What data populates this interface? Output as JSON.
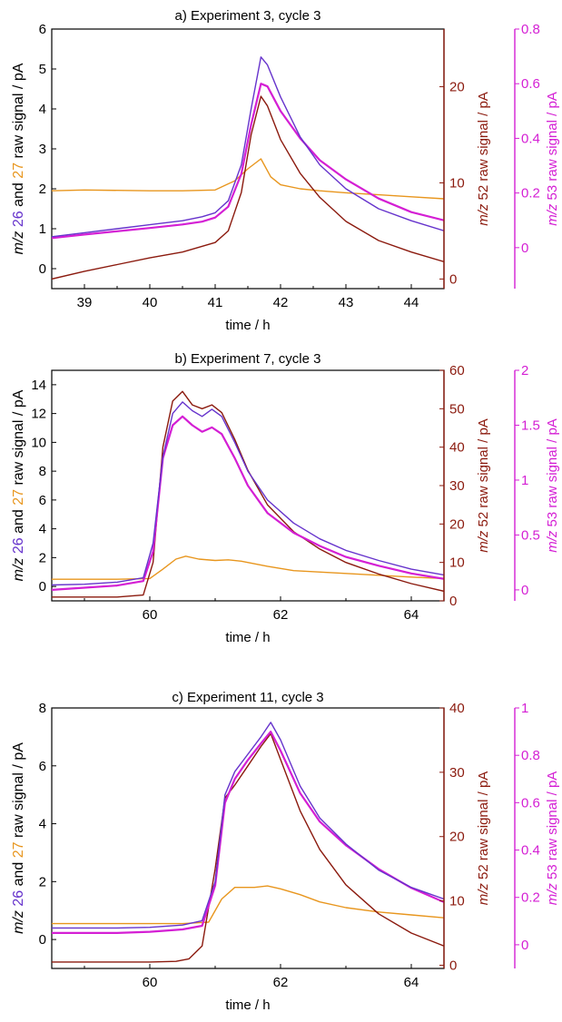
{
  "figure": {
    "xlabel": "time / h",
    "left_ylabel": {
      "prefix": "m/z",
      "a": "26",
      "mid": "and",
      "b": "27",
      "suffix": "raw signal / pA"
    },
    "right1_ylabel": "m/z 52 raw signal / pA",
    "right2_ylabel": "m/z 53 raw signal / pA"
  },
  "colors": {
    "mz26": "#6633cc",
    "mz27": "#e8961e",
    "mz52": "#8b1a0e",
    "mz53": "#d41fd4",
    "axis": "#000000"
  },
  "chart_data": [
    {
      "type": "line",
      "title": "a) Experiment 3, cycle 3",
      "xlabel": "time / h",
      "xlim": [
        38.5,
        44.5
      ],
      "xticks": [
        "39",
        "40",
        "41",
        "42",
        "43",
        "44"
      ],
      "ylim_left": [
        -0.5,
        6
      ],
      "yticks_left": [
        "0",
        "1",
        "2",
        "3",
        "4",
        "5",
        "6"
      ],
      "ylim_52": [
        -1,
        26
      ],
      "yticks_52": [
        "0",
        "10",
        "20"
      ],
      "ylim_53": [
        -0.15,
        0.8
      ],
      "yticks_53": [
        "0",
        "0.2",
        "0.4",
        "0.6",
        "0.8"
      ],
      "series": [
        {
          "name": "m/z 26",
          "axis": "left",
          "x": [
            38.5,
            39,
            39.5,
            40,
            40.5,
            40.8,
            41,
            41.2,
            41.4,
            41.55,
            41.7,
            41.8,
            42,
            42.3,
            42.6,
            43,
            43.5,
            44,
            44.5
          ],
          "y": [
            0.8,
            0.9,
            1.0,
            1.1,
            1.2,
            1.3,
            1.4,
            1.7,
            2.6,
            4.0,
            5.3,
            5.1,
            4.3,
            3.3,
            2.6,
            2.0,
            1.5,
            1.2,
            0.95
          ]
        },
        {
          "name": "m/z 27",
          "axis": "left",
          "x": [
            38.5,
            39,
            40,
            40.5,
            41,
            41.3,
            41.5,
            41.7,
            41.85,
            42,
            42.3,
            42.6,
            43,
            43.5,
            44,
            44.5
          ],
          "y": [
            1.95,
            1.97,
            1.95,
            1.95,
            1.97,
            2.2,
            2.5,
            2.75,
            2.3,
            2.1,
            2.0,
            1.95,
            1.9,
            1.85,
            1.8,
            1.75
          ]
        },
        {
          "name": "m/z 52",
          "axis": "right52",
          "x": [
            38.5,
            39,
            39.5,
            40,
            40.5,
            41,
            41.2,
            41.4,
            41.55,
            41.7,
            41.8,
            42,
            42.3,
            42.6,
            43,
            43.5,
            44,
            44.5
          ],
          "y": [
            0.0,
            0.8,
            1.5,
            2.2,
            2.8,
            3.8,
            5.0,
            9.0,
            15.0,
            19.0,
            18.0,
            14.5,
            11.0,
            8.5,
            6.0,
            4.0,
            2.8,
            1.8
          ]
        },
        {
          "name": "m/z 53",
          "axis": "right53",
          "x": [
            38.5,
            39,
            39.5,
            40,
            40.5,
            40.8,
            41,
            41.2,
            41.4,
            41.55,
            41.7,
            41.8,
            42,
            42.3,
            42.6,
            43,
            43.5,
            44,
            44.5
          ],
          "y": [
            0.035,
            0.048,
            0.06,
            0.072,
            0.085,
            0.095,
            0.11,
            0.15,
            0.27,
            0.45,
            0.6,
            0.59,
            0.5,
            0.4,
            0.32,
            0.25,
            0.18,
            0.13,
            0.1
          ]
        }
      ]
    },
    {
      "type": "line",
      "title": "b) Experiment 7, cycle 3",
      "xlabel": "time / h",
      "xlim": [
        58.5,
        64.5
      ],
      "xticks": [
        "60",
        "62",
        "64"
      ],
      "ylim_left": [
        -1,
        15
      ],
      "yticks_left": [
        "0",
        "2",
        "4",
        "6",
        "8",
        "10",
        "12",
        "14"
      ],
      "ylim_52": [
        0,
        60
      ],
      "yticks_52": [
        "0",
        "10",
        "20",
        "30",
        "40",
        "50",
        "60"
      ],
      "ylim_53": [
        -0.1,
        2
      ],
      "yticks_53": [
        "0",
        "0.5",
        "1",
        "1.5",
        "2"
      ],
      "series": [
        {
          "name": "m/z 26",
          "axis": "left",
          "x": [
            58.5,
            59,
            59.5,
            59.9,
            60.05,
            60.2,
            60.35,
            60.5,
            60.65,
            60.8,
            60.95,
            61.1,
            61.3,
            61.5,
            61.8,
            62.2,
            62.6,
            63,
            63.5,
            64,
            64.5
          ],
          "y": [
            0.1,
            0.15,
            0.3,
            0.6,
            3.0,
            9.0,
            12.0,
            12.8,
            12.2,
            11.8,
            12.3,
            11.8,
            10.0,
            8.0,
            6.0,
            4.4,
            3.3,
            2.5,
            1.8,
            1.2,
            0.8
          ]
        },
        {
          "name": "m/z 27",
          "axis": "left",
          "x": [
            58.5,
            59,
            59.5,
            60,
            60.2,
            60.4,
            60.55,
            60.75,
            61,
            61.2,
            61.4,
            61.8,
            62.2,
            63,
            64,
            64.5
          ],
          "y": [
            0.5,
            0.5,
            0.5,
            0.55,
            1.2,
            1.9,
            2.1,
            1.9,
            1.8,
            1.85,
            1.75,
            1.4,
            1.1,
            0.9,
            0.65,
            0.55
          ]
        },
        {
          "name": "m/z 52",
          "axis": "right52",
          "x": [
            58.5,
            59,
            59.5,
            59.9,
            60.05,
            60.2,
            60.35,
            60.5,
            60.65,
            60.8,
            60.95,
            61.1,
            61.3,
            61.5,
            61.8,
            62.2,
            62.6,
            63,
            63.5,
            64,
            64.5
          ],
          "y": [
            1.0,
            1.0,
            1.0,
            1.5,
            10.0,
            40.0,
            52.0,
            54.5,
            51.0,
            50.0,
            51.0,
            49.0,
            42.0,
            34.0,
            25.0,
            18.0,
            13.5,
            10.0,
            7.0,
            4.5,
            2.5
          ]
        },
        {
          "name": "m/z 53",
          "axis": "right53",
          "x": [
            58.5,
            59,
            59.5,
            59.9,
            60.05,
            60.2,
            60.35,
            60.5,
            60.65,
            60.8,
            60.95,
            61.1,
            61.3,
            61.5,
            61.8,
            62.2,
            62.6,
            63,
            63.5,
            64,
            64.5
          ],
          "y": [
            0.0,
            0.02,
            0.04,
            0.08,
            0.35,
            1.2,
            1.5,
            1.58,
            1.5,
            1.44,
            1.48,
            1.42,
            1.2,
            0.95,
            0.7,
            0.52,
            0.4,
            0.3,
            0.22,
            0.15,
            0.1
          ]
        }
      ]
    },
    {
      "type": "line",
      "title": "c) Experiment 11, cycle 3",
      "xlabel": "time / h",
      "xlim": [
        58.5,
        64.5
      ],
      "xticks": [
        "60",
        "62",
        "64"
      ],
      "ylim_left": [
        -1,
        8
      ],
      "yticks_left": [
        "0",
        "2",
        "4",
        "6",
        "8"
      ],
      "ylim_52": [
        -0.5,
        40
      ],
      "yticks_52": [
        "0",
        "10",
        "20",
        "30",
        "40"
      ],
      "ylim_53": [
        -0.1,
        1
      ],
      "yticks_53": [
        "0",
        "0.2",
        "0.4",
        "0.6",
        "0.8",
        "1"
      ],
      "series": [
        {
          "name": "m/z 26",
          "axis": "left",
          "x": [
            58.5,
            59,
            59.5,
            60,
            60.5,
            60.8,
            61.0,
            61.15,
            61.3,
            61.5,
            61.7,
            61.85,
            62.0,
            62.3,
            62.6,
            63,
            63.5,
            64,
            64.5
          ],
          "y": [
            0.4,
            0.4,
            0.4,
            0.42,
            0.5,
            0.65,
            2.0,
            5.0,
            5.8,
            6.4,
            7.0,
            7.5,
            6.9,
            5.3,
            4.2,
            3.3,
            2.4,
            1.8,
            1.4
          ]
        },
        {
          "name": "m/z 27",
          "axis": "left",
          "x": [
            58.5,
            59,
            60,
            60.5,
            60.9,
            61.1,
            61.3,
            61.6,
            61.8,
            62.0,
            62.3,
            62.6,
            63,
            63.5,
            64,
            64.5
          ],
          "y": [
            0.55,
            0.55,
            0.55,
            0.55,
            0.6,
            1.4,
            1.8,
            1.8,
            1.85,
            1.75,
            1.55,
            1.3,
            1.1,
            0.95,
            0.85,
            0.75
          ]
        },
        {
          "name": "m/z 52",
          "axis": "right52",
          "x": [
            58.5,
            59,
            59.5,
            60,
            60.4,
            60.6,
            60.8,
            61.0,
            61.15,
            61.3,
            61.5,
            61.7,
            61.85,
            62.0,
            62.3,
            62.6,
            63,
            63.5,
            64,
            64.5
          ],
          "y": [
            0.5,
            0.5,
            0.5,
            0.5,
            0.6,
            1.0,
            3.0,
            15.0,
            26.0,
            28.0,
            31.0,
            34.0,
            36.0,
            32.0,
            24.0,
            18.0,
            12.5,
            8.0,
            5.0,
            3.0
          ]
        },
        {
          "name": "m/z 53",
          "axis": "right53",
          "x": [
            58.5,
            59,
            59.5,
            60,
            60.5,
            60.8,
            61.0,
            61.15,
            61.3,
            61.5,
            61.7,
            61.85,
            62.0,
            62.3,
            62.6,
            63,
            63.5,
            64,
            64.5
          ],
          "y": [
            0.05,
            0.05,
            0.05,
            0.055,
            0.065,
            0.08,
            0.25,
            0.6,
            0.7,
            0.78,
            0.85,
            0.9,
            0.82,
            0.64,
            0.52,
            0.42,
            0.32,
            0.24,
            0.18
          ]
        }
      ]
    }
  ]
}
